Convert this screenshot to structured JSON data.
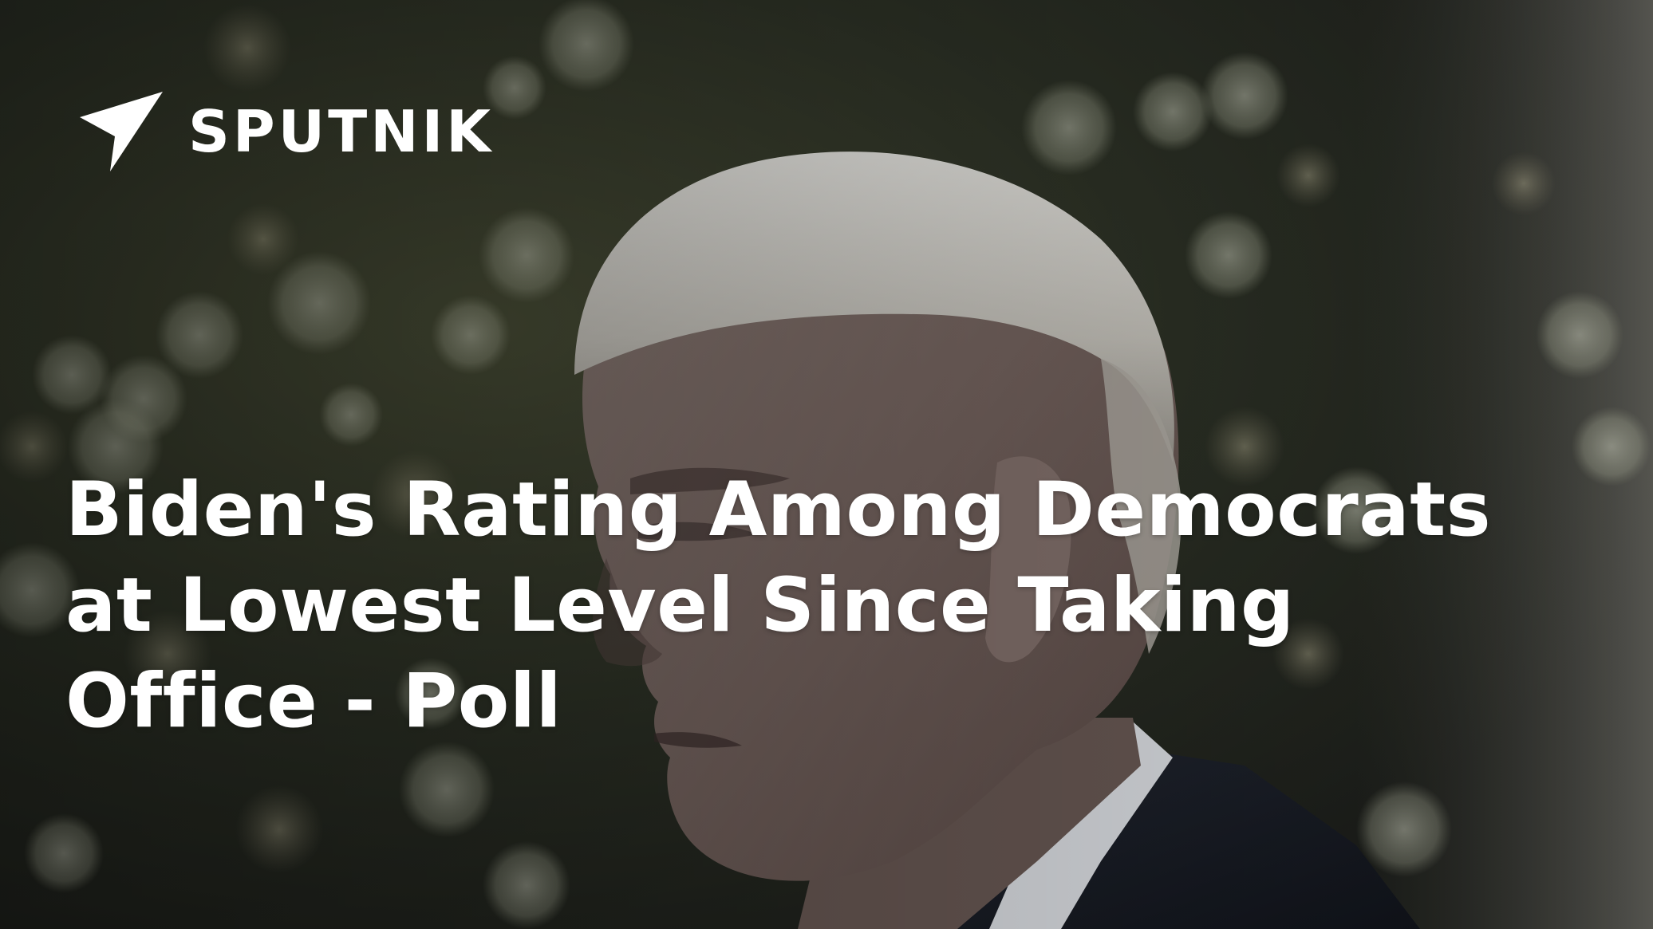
{
  "brand": {
    "name": "SPUTNIK",
    "logo_icon": "sputnik-arrow-icon",
    "color": "#ffffff"
  },
  "headline": {
    "lines": [
      "Biden's Rating Among Democrats",
      "at Lowest Level Since Taking",
      "Office - Poll"
    ]
  },
  "colors": {
    "text": "#ffffff",
    "background": "#2a2c27"
  }
}
